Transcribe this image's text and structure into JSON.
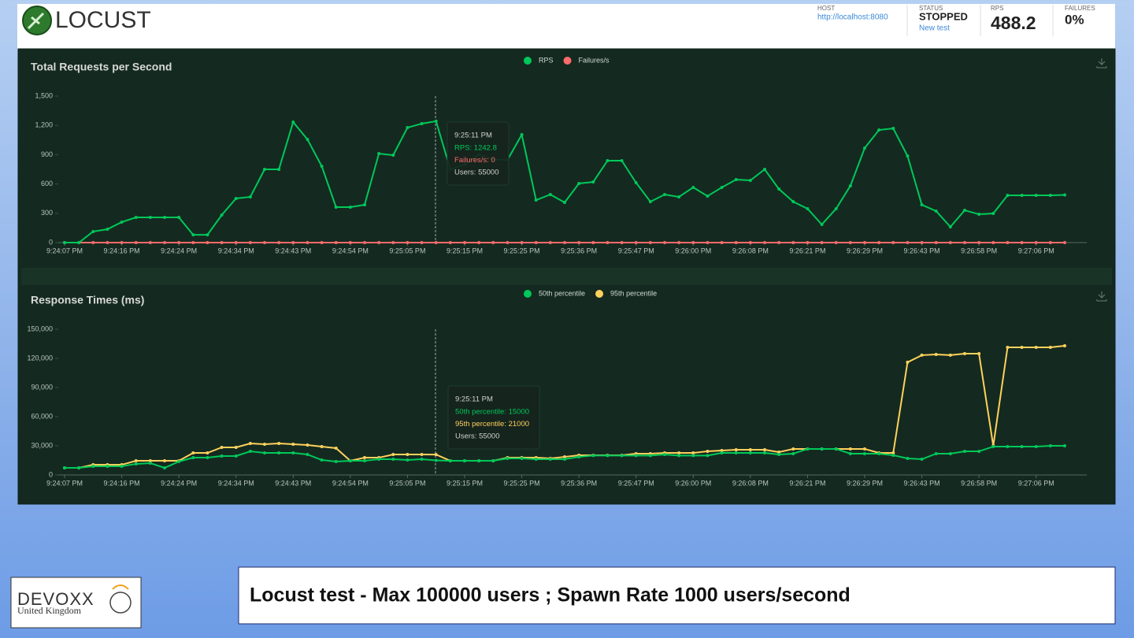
{
  "header": {
    "logo": "LOCUST",
    "stats": [
      {
        "label": "HOST",
        "value": "http://localhost:8080"
      },
      {
        "label": "STATUS",
        "value": "STOPPED",
        "link": "New test"
      },
      {
        "label": "RPS",
        "value": "488.2"
      },
      {
        "label": "FAILURES",
        "value": "0%"
      }
    ]
  },
  "chart_data": [
    {
      "type": "line",
      "title": "Total Requests per Second",
      "categories": [
        "9:24:07 PM",
        null,
        null,
        null,
        "9:24:16 PM",
        null,
        null,
        null,
        "9:24:24 PM",
        null,
        null,
        null,
        "9:24:34 PM",
        null,
        null,
        null,
        "9:24:43 PM",
        null,
        null,
        null,
        "9:24:54 PM",
        null,
        null,
        null,
        "9:25:05 PM",
        null,
        null,
        null,
        "9:25:15 PM",
        null,
        null,
        null,
        "9:25:25 PM",
        null,
        null,
        null,
        "9:25:36 PM",
        null,
        null,
        null,
        "9:25:47 PM",
        null,
        null,
        null,
        "9:26:00 PM",
        null,
        null,
        null,
        "9:26:08 PM",
        null,
        null,
        null,
        "9:26:21 PM",
        null,
        null,
        null,
        "9:26:29 PM",
        null,
        null,
        null,
        "9:26:43 PM",
        null,
        null,
        null,
        "9:26:58 PM",
        null,
        null,
        null,
        "9:27:06 PM",
        null,
        null
      ],
      "series": [
        {
          "name": "RPS",
          "color": "#00c85a",
          "values": [
            0,
            0,
            113,
            137,
            210,
            258,
            258,
            258,
            258,
            80,
            80,
            282,
            452,
            468,
            750,
            750,
            1234,
            1056,
            782,
            363,
            363,
            387,
            911,
            895,
            1177,
            1218,
            1242.8,
            750,
            800,
            900,
            850,
            847,
            1105,
            435,
            492,
            411,
            605,
            621,
            839,
            839,
            613,
            419,
            492,
            468,
            565,
            476,
            565,
            645,
            637,
            750,
            548,
            419,
            347,
            185,
            347,
            581,
            968,
            1153,
            1169,
            887,
            387,
            323,
            161,
            331,
            290,
            298,
            484,
            484,
            484,
            484,
            488.2
          ]
        },
        {
          "name": "Failures/s",
          "color": "#ff6b6b",
          "values": [
            0,
            0,
            0,
            0,
            0,
            0,
            0,
            0,
            0,
            0,
            0,
            0,
            0,
            0,
            0,
            0,
            0,
            0,
            0,
            0,
            0,
            0,
            0,
            0,
            0,
            0,
            0,
            0,
            0,
            0,
            0,
            0,
            0,
            0,
            0,
            0,
            0,
            0,
            0,
            0,
            0,
            0,
            0,
            0,
            0,
            0,
            0,
            0,
            0,
            0,
            0,
            0,
            0,
            0,
            0,
            0,
            0,
            0,
            0,
            0,
            0,
            0,
            0,
            0,
            0,
            0,
            0,
            0,
            0,
            0,
            0
          ]
        }
      ],
      "ylim": [
        0,
        1500
      ],
      "yticks": [
        0,
        300,
        600,
        900,
        {
          "value": 1200,
          "label": "1,200"
        },
        {
          "value": 1500,
          "label": "1,500"
        }
      ],
      "tooltip": {
        "time": "9:25:11 PM",
        "lines": [
          "RPS: 1242.8",
          "Failures/s: 0"
        ],
        "users": "Users: 55000"
      }
    },
    {
      "type": "line",
      "title": "Response Times (ms)",
      "categories": [
        "9:24:07 PM",
        null,
        null,
        null,
        "9:24:16 PM",
        null,
        null,
        null,
        "9:24:24 PM",
        null,
        null,
        null,
        "9:24:34 PM",
        null,
        null,
        null,
        "9:24:43 PM",
        null,
        null,
        null,
        "9:24:54 PM",
        null,
        null,
        null,
        "9:25:05 PM",
        null,
        null,
        null,
        "9:25:15 PM",
        null,
        null,
        null,
        "9:25:25 PM",
        null,
        null,
        null,
        "9:25:36 PM",
        null,
        null,
        null,
        "9:25:47 PM",
        null,
        null,
        null,
        "9:26:00 PM",
        null,
        null,
        null,
        "9:26:08 PM",
        null,
        null,
        null,
        "9:26:21 PM",
        null,
        null,
        null,
        "9:26:29 PM",
        null,
        null,
        null,
        "9:26:43 PM",
        null,
        null,
        null,
        "9:26:58 PM",
        null,
        null,
        null,
        "9:27:06 PM",
        null,
        null
      ],
      "series": [
        {
          "name": "50th percentile",
          "color": "#00c85a",
          "values": [
            7300,
            7300,
            8900,
            8900,
            8900,
            11400,
            12200,
            7300,
            13800,
            17800,
            17800,
            19500,
            19500,
            24300,
            22700,
            22700,
            22700,
            21100,
            15400,
            13800,
            14600,
            14600,
            16200,
            16200,
            15400,
            16200,
            15000,
            14600,
            14600,
            14600,
            14600,
            17000,
            17000,
            16200,
            16200,
            16200,
            18600,
            20000,
            20000,
            20000,
            20000,
            20000,
            21100,
            20000,
            20000,
            20000,
            22700,
            22700,
            22700,
            22700,
            21100,
            21900,
            26800,
            26800,
            26800,
            21900,
            21900,
            21900,
            20300,
            17000,
            16200,
            21900,
            21900,
            24300,
            24300,
            29200,
            29200,
            29200,
            29200,
            30000,
            30000
          ]
        },
        {
          "name": "95th percentile",
          "color": "#ffd15c",
          "values": [
            7300,
            7300,
            10500,
            10500,
            10500,
            14600,
            14600,
            14600,
            14600,
            22700,
            22700,
            28400,
            28400,
            32400,
            31600,
            32400,
            31600,
            30800,
            29200,
            27600,
            14600,
            17800,
            17800,
            21100,
            21100,
            21100,
            21000,
            14600,
            14600,
            14600,
            14600,
            17800,
            17800,
            17800,
            17000,
            18600,
            20300,
            20300,
            20300,
            20300,
            21900,
            21900,
            22700,
            22700,
            22700,
            24300,
            25100,
            25900,
            25900,
            25900,
            23500,
            26800,
            26800,
            26800,
            26800,
            26800,
            26800,
            22700,
            22700,
            116000,
            123300,
            124100,
            123300,
            124900,
            124900,
            30000,
            131400,
            131400,
            131400,
            131400,
            133000
          ]
        }
      ],
      "ylim": [
        0,
        150000
      ],
      "yticks": [
        0,
        {
          "value": 30000,
          "label": "30,000"
        },
        {
          "value": 60000,
          "label": "60,000"
        },
        {
          "value": 90000,
          "label": "90,000"
        },
        {
          "value": 120000,
          "label": "120,000"
        },
        {
          "value": 150000,
          "label": "150,000"
        }
      ],
      "tooltip": {
        "time": "9:25:11 PM",
        "lines": [
          "50th percentile: 15000",
          "95th percentile: 21000"
        ],
        "users": "Users: 55000"
      }
    }
  ],
  "footer": {
    "caption": "Locust test - Max 100000 users ; Spawn Rate 1000 users/second",
    "logo": {
      "name": "DEVOXX",
      "region": "United Kingdom"
    }
  }
}
